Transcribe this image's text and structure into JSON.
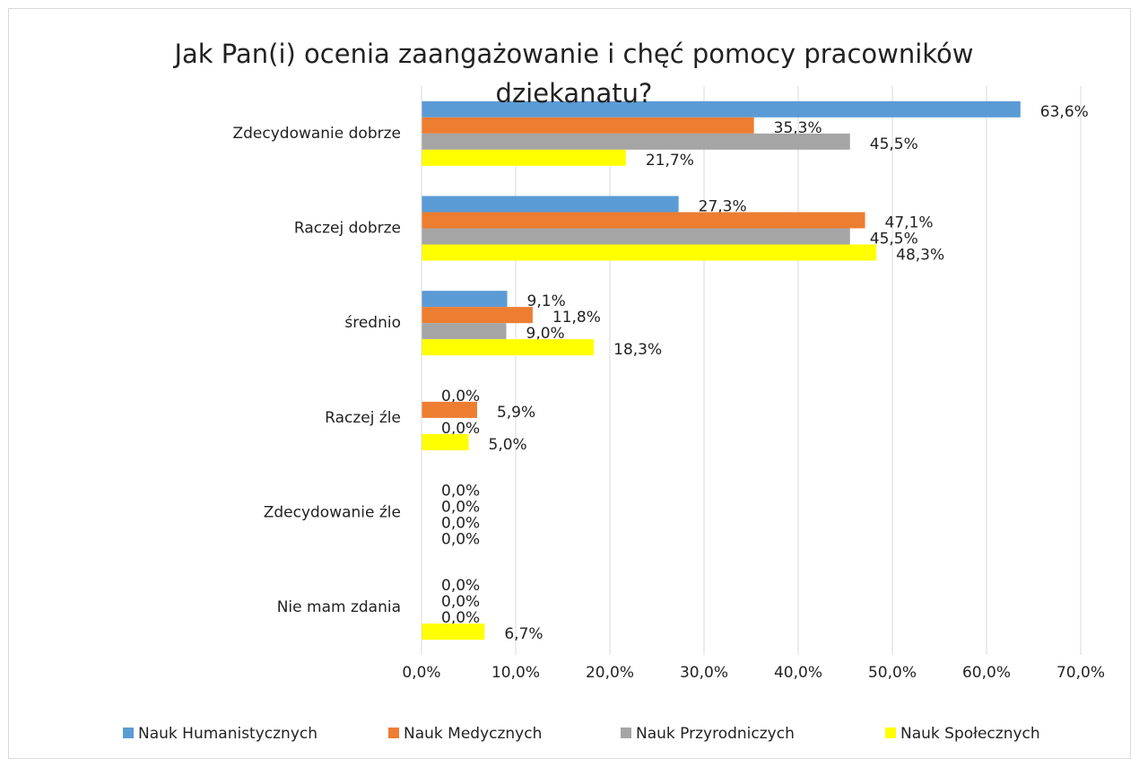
{
  "chart_data": {
    "type": "bar",
    "orientation": "horizontal",
    "title": "Jak Pan(i) ocenia zaangażowanie i chęć pomocy pracowników dziekanatu?",
    "categories": [
      "Zdecydowanie dobrze",
      "Raczej dobrze",
      "średnio",
      "Raczej źle",
      "Zdecydowanie źle",
      "Nie mam zdania"
    ],
    "series": [
      {
        "name": "Nauk Humanistycznych",
        "color": "#5b9bd5",
        "values": [
          63.6,
          27.3,
          9.1,
          0,
          0,
          0
        ],
        "value_labels": [
          "63,6%",
          "27,3%",
          "9,1%",
          "0,0%",
          "0,0%",
          "0,0%"
        ]
      },
      {
        "name": "Nauk Medycznych",
        "color": "#ed7d31",
        "values": [
          35.3,
          47.1,
          11.8,
          5.9,
          0,
          0
        ],
        "value_labels": [
          "35,3%",
          "47,1%",
          "11,8%",
          "5,9%",
          "0,0%",
          "0,0%"
        ]
      },
      {
        "name": "Nauk Przyrodniczych",
        "color": "#a5a5a5",
        "values": [
          45.5,
          45.5,
          9.0,
          0,
          0,
          0
        ],
        "value_labels": [
          "45,5%",
          "45,5%",
          "9,0%",
          "0,0%",
          "0,0%",
          "0,0%"
        ]
      },
      {
        "name": "Nauk Społecznych",
        "color": "#ffff00",
        "values": [
          21.7,
          48.3,
          18.3,
          5.0,
          0,
          6.7
        ],
        "value_labels": [
          "21,7%",
          "48,3%",
          "18,3%",
          "5,0%",
          "0,0%",
          "6,7%"
        ]
      }
    ],
    "xlim": [
      0,
      70
    ],
    "xticks": [
      {
        "value": 0,
        "label": "0,0%"
      },
      {
        "value": 10,
        "label": "10,0%"
      },
      {
        "value": 20,
        "label": "20,0%"
      },
      {
        "value": 30,
        "label": "30,0%"
      },
      {
        "value": 40,
        "label": "40,0%"
      },
      {
        "value": 50,
        "label": "50,0%"
      },
      {
        "value": 60,
        "label": "60,0%"
      },
      {
        "value": 70,
        "label": "70,0%"
      }
    ],
    "grid": true,
    "legend": "bottom"
  }
}
